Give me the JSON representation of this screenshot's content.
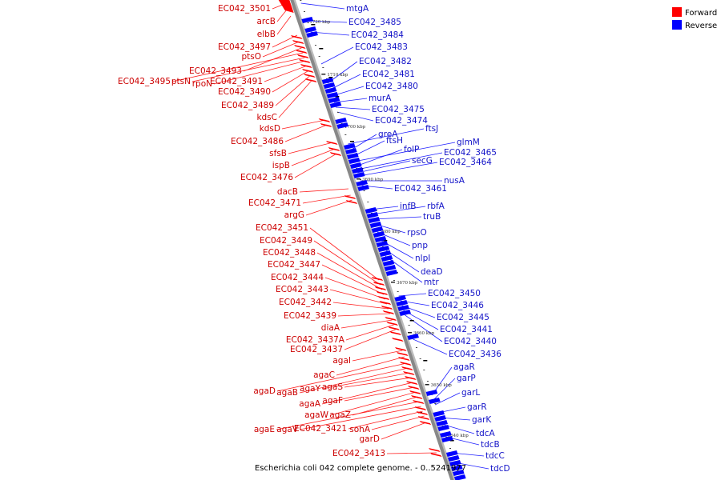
{
  "caption": "Escherichia coli 042 complete genome. - 0..5241977",
  "legend": [
    {
      "label": "Forward",
      "color": "#ff0000"
    },
    {
      "label": "Reverse",
      "color": "#0000ff"
    }
  ],
  "colors": {
    "forward": "#ff0000",
    "reverse": "#0000ff",
    "forward_line": "#ff2020",
    "reverse_line": "#2020ff",
    "axis": "#888888"
  },
  "ticks": [
    "1720 kbp",
    "1710 kbp",
    "1700 kbp",
    "3690 kbp",
    "3680 kbp",
    "3670 kbp",
    "3660 kbp",
    "3650 kbp",
    "3640 kbp"
  ],
  "forward_genes": [
    "EC042_3501",
    "arcB",
    "elbB",
    "EC042_3497",
    "ptsO",
    "EC042_3493",
    "EC042_3495",
    "ptsN",
    "rpoN",
    "EC042_3491",
    "EC042_3490",
    "EC042_3489",
    "kdsC",
    "kdsD",
    "EC042_3486",
    "sfsB",
    "ispB",
    "EC042_3476",
    "dacB",
    "EC042_3471",
    "argG",
    "EC042_3451",
    "EC042_3449",
    "EC042_3448",
    "EC042_3447",
    "EC042_3444",
    "EC042_3443",
    "EC042_3442",
    "EC042_3439",
    "diaA",
    "EC042_3437A",
    "EC042_3437",
    "agaI",
    "agaC",
    "agaD",
    "agaB",
    "agaY",
    "agaS",
    "agaA",
    "agaF",
    "agaW",
    "agaZ",
    "agaE",
    "agaV",
    "EC042_3421",
    "sohA",
    "garD",
    "EC042_3413"
  ],
  "reverse_genes": [
    "mtgA",
    "EC042_3485",
    "EC042_3484",
    "EC042_3483",
    "EC042_3482",
    "EC042_3481",
    "EC042_3480",
    "murA",
    "EC042_3475",
    "EC042_3474",
    "ftsJ",
    "greA",
    "ftsH",
    "glmM",
    "folP",
    "EC042_3465",
    "secG",
    "EC042_3464",
    "nusA",
    "EC042_3461",
    "infB",
    "rbfA",
    "truB",
    "rpsO",
    "pnp",
    "nlpI",
    "deaD",
    "mtr",
    "EC042_3450",
    "EC042_3446",
    "EC042_3445",
    "EC042_3441",
    "EC042_3440",
    "EC042_3436",
    "agaR",
    "garP",
    "garL",
    "garR",
    "garK",
    "tdcA",
    "tdcB",
    "tdcC",
    "tdcD"
  ]
}
